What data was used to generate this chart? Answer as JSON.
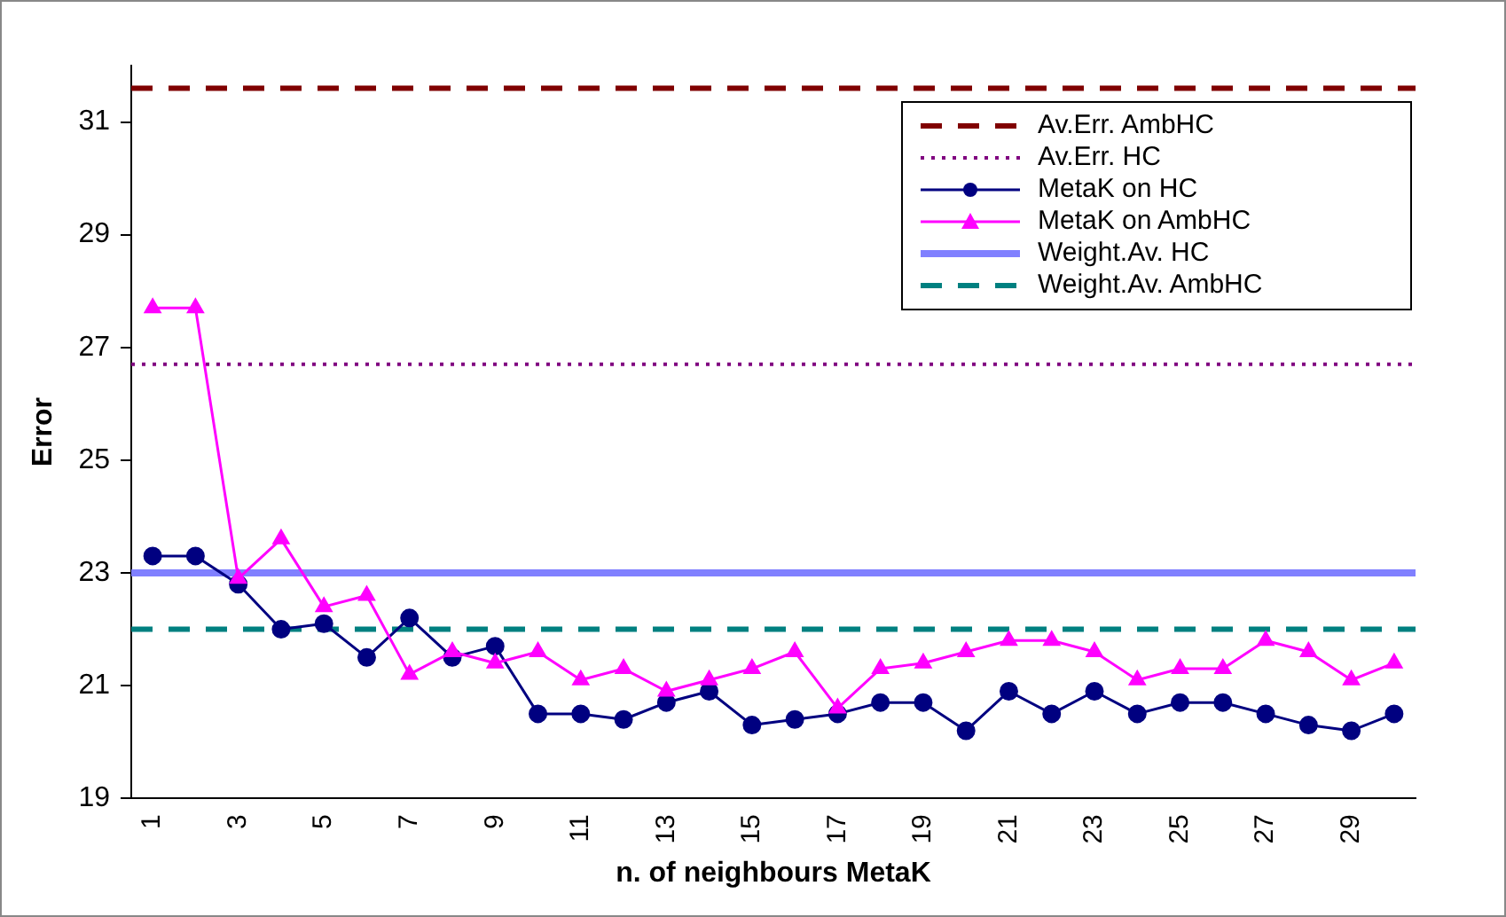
{
  "chart_data": {
    "type": "line",
    "xlabel": "n. of neighbours MetaK",
    "ylabel": "Error",
    "categories": [
      "1",
      null,
      "3",
      null,
      "5",
      null,
      "7",
      null,
      "9",
      null,
      "11",
      null,
      "13",
      null,
      "15",
      null,
      "17",
      null,
      "19",
      null,
      "21",
      null,
      "23",
      null,
      "25",
      null,
      "27",
      null,
      "29",
      null
    ],
    "series": [
      {
        "name": "MetaK on HC",
        "color": "#000080",
        "marker": "circle",
        "values": [
          23.3,
          23.3,
          22.8,
          22.0,
          22.1,
          21.5,
          22.2,
          21.5,
          21.7,
          20.5,
          20.5,
          20.4,
          20.7,
          20.9,
          20.3,
          20.4,
          20.5,
          20.7,
          20.7,
          20.2,
          20.9,
          20.5,
          20.9,
          20.5,
          20.7,
          20.7,
          20.5,
          20.3,
          20.2,
          20.5
        ]
      },
      {
        "name": "MetaK on AmbHC",
        "color": "#ff00ff",
        "marker": "triangle",
        "values": [
          27.7,
          27.7,
          22.9,
          23.6,
          22.4,
          22.6,
          21.2,
          21.6,
          21.4,
          21.6,
          21.1,
          21.3,
          20.9,
          21.1,
          21.3,
          21.6,
          20.6,
          21.3,
          21.4,
          21.6,
          21.8,
          21.8,
          21.6,
          21.1,
          21.3,
          21.3,
          21.8,
          21.6,
          21.1,
          21.4
        ]
      }
    ],
    "ref_lines": [
      {
        "axis": "y",
        "value": 31.6,
        "label": "Av.Err. AmbHC",
        "color": "#800000",
        "line_style": "dashed"
      },
      {
        "axis": "y",
        "value": 26.7,
        "label": "Av.Err. HC",
        "color": "#800080",
        "line_style": "dotted"
      },
      {
        "axis": "y",
        "value": 23.0,
        "label": "Weight.Av. HC",
        "color": "#8080ff",
        "line_style": "solid"
      },
      {
        "axis": "y",
        "value": 22.0,
        "label": "Weight.Av. AmbHC",
        "color": "#008080",
        "line_style": "dashed"
      }
    ],
    "ylim": [
      19,
      32
    ],
    "yticks": [
      19,
      21,
      23,
      25,
      27,
      29,
      31
    ],
    "legend": "top right"
  }
}
